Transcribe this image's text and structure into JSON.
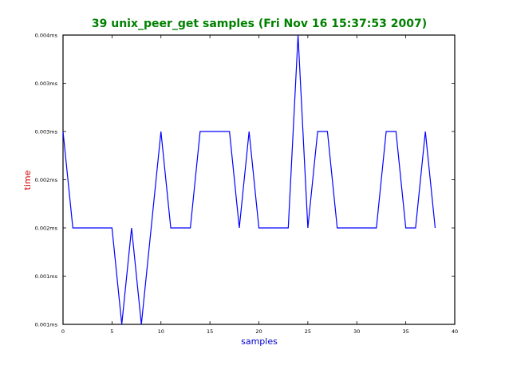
{
  "chart_data": {
    "type": "line",
    "title": "39 unix_peer_get samples (Fri Nov 16 15:37:53 2007)",
    "xlabel": "samples",
    "ylabel": "time",
    "xlim": [
      0,
      40
    ],
    "ylim": [
      0.001,
      0.004
    ],
    "x_ticks": [
      0,
      5,
      10,
      15,
      20,
      25,
      30,
      35,
      40
    ],
    "x_tick_labels": [
      "0",
      "5",
      "10",
      "15",
      "20",
      "25",
      "30",
      "35",
      "40"
    ],
    "y_ticks": [
      0.001,
      0.0015,
      0.002,
      0.0025,
      0.003,
      0.0035,
      0.004
    ],
    "y_tick_labels": [
      "0.001ms",
      "0.001ms",
      "0.002ms",
      "0.002ms",
      "0.003ms",
      "0.003ms",
      "0.004ms"
    ],
    "grid": false,
    "colors": {
      "title": "#008000",
      "xlabel": "#0000cc",
      "ylabel": "#cc0000",
      "line": "#0000ff"
    },
    "series": [
      {
        "x": [
          0,
          1,
          2,
          3,
          4,
          5,
          6,
          7,
          8,
          9,
          10,
          11,
          12,
          13,
          14,
          15,
          16,
          17,
          18,
          19,
          20,
          21,
          22,
          23,
          24,
          25,
          26,
          27,
          28,
          29,
          30,
          31,
          32,
          33,
          34,
          35,
          36,
          37,
          38
        ],
        "values": [
          0.003,
          0.002,
          0.002,
          0.002,
          0.002,
          0.002,
          0.001,
          0.002,
          0.001,
          0.002,
          0.003,
          0.002,
          0.002,
          0.002,
          0.003,
          0.003,
          0.003,
          0.003,
          0.002,
          0.003,
          0.002,
          0.002,
          0.002,
          0.002,
          0.004,
          0.002,
          0.003,
          0.003,
          0.002,
          0.002,
          0.002,
          0.002,
          0.002,
          0.003,
          0.003,
          0.002,
          0.002,
          0.003,
          0.002
        ]
      }
    ]
  }
}
